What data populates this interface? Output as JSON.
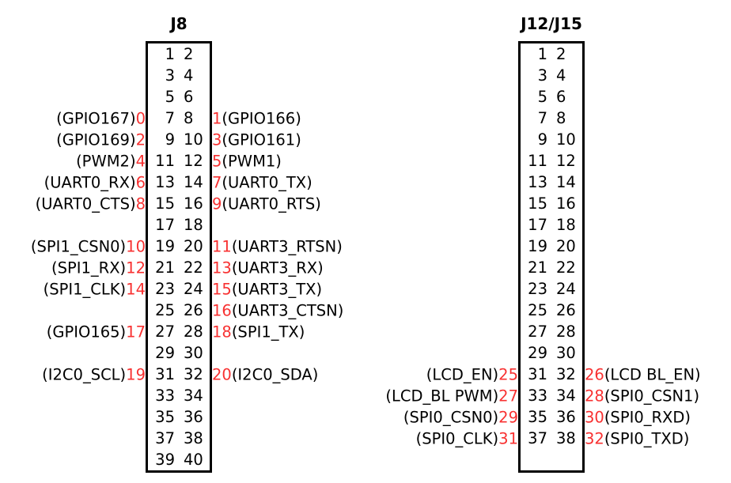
{
  "colors": {
    "background": "#ffffff",
    "text": "#000000",
    "red": "#f83131"
  },
  "connectors": [
    {
      "title": "J8",
      "rows": [
        {
          "left_label": "",
          "left_index": "",
          "left_pin": "1",
          "right_pin": "2",
          "right_index": "",
          "right_label": ""
        },
        {
          "left_label": "",
          "left_index": "",
          "left_pin": "3",
          "right_pin": "4",
          "right_index": "",
          "right_label": ""
        },
        {
          "left_label": "",
          "left_index": "",
          "left_pin": "5",
          "right_pin": "6",
          "right_index": "",
          "right_label": ""
        },
        {
          "left_label": "(GPIO167)",
          "left_index": "0",
          "left_pin": "7",
          "right_pin": "8",
          "right_index": "1",
          "right_label": "(GPIO166)"
        },
        {
          "left_label": "(GPIO169)",
          "left_index": "2",
          "left_pin": "9",
          "right_pin": "10",
          "right_index": "3",
          "right_label": "(GPIO161)"
        },
        {
          "left_label": "(PWM2)",
          "left_index": "4",
          "left_pin": "11",
          "right_pin": "12",
          "right_index": "5",
          "right_label": "(PWM1)"
        },
        {
          "left_label": "(UART0_RX)",
          "left_index": "6",
          "left_pin": "13",
          "right_pin": "14",
          "right_index": "7",
          "right_label": "(UART0_TX)"
        },
        {
          "left_label": "(UART0_CTS)",
          "left_index": "8",
          "left_pin": "15",
          "right_pin": "16",
          "right_index": "9",
          "right_label": "(UART0_RTS)"
        },
        {
          "left_label": "",
          "left_index": "",
          "left_pin": "17",
          "right_pin": "18",
          "right_index": "",
          "right_label": ""
        },
        {
          "left_label": "(SPI1_CSN0)",
          "left_index": "10",
          "left_pin": "19",
          "right_pin": "20",
          "right_index": "11",
          "right_label": "(UART3_RTSN)"
        },
        {
          "left_label": "(SPI1_RX)",
          "left_index": "12",
          "left_pin": "21",
          "right_pin": "22",
          "right_index": "13",
          "right_label": "(UART3_RX)"
        },
        {
          "left_label": "(SPI1_CLK)",
          "left_index": "14",
          "left_pin": "23",
          "right_pin": "24",
          "right_index": "15",
          "right_label": "(UART3_TX)"
        },
        {
          "left_label": "",
          "left_index": "",
          "left_pin": "25",
          "right_pin": "26",
          "right_index": "16",
          "right_label": "(UART3_CTSN)"
        },
        {
          "left_label": "(GPIO165)",
          "left_index": "17",
          "left_pin": "27",
          "right_pin": "28",
          "right_index": "18",
          "right_label": "(SPI1_TX)"
        },
        {
          "left_label": "",
          "left_index": "",
          "left_pin": "29",
          "right_pin": "30",
          "right_index": "",
          "right_label": ""
        },
        {
          "left_label": "(I2C0_SCL)",
          "left_index": "19",
          "left_pin": "31",
          "right_pin": "32",
          "right_index": "20",
          "right_label": "(I2C0_SDA)"
        },
        {
          "left_label": "",
          "left_index": "",
          "left_pin": "33",
          "right_pin": "34",
          "right_index": "",
          "right_label": ""
        },
        {
          "left_label": "",
          "left_index": "",
          "left_pin": "35",
          "right_pin": "36",
          "right_index": "",
          "right_label": ""
        },
        {
          "left_label": "",
          "left_index": "",
          "left_pin": "37",
          "right_pin": "38",
          "right_index": "",
          "right_label": ""
        },
        {
          "left_label": "",
          "left_index": "",
          "left_pin": "39",
          "right_pin": "40",
          "right_index": "",
          "right_label": ""
        }
      ]
    },
    {
      "title": "J12/J15",
      "rows": [
        {
          "left_label": "",
          "left_index": "",
          "left_pin": "1",
          "right_pin": "2",
          "right_index": "",
          "right_label": ""
        },
        {
          "left_label": "",
          "left_index": "",
          "left_pin": "3",
          "right_pin": "4",
          "right_index": "",
          "right_label": ""
        },
        {
          "left_label": "",
          "left_index": "",
          "left_pin": "5",
          "right_pin": "6",
          "right_index": "",
          "right_label": ""
        },
        {
          "left_label": "",
          "left_index": "",
          "left_pin": "7",
          "right_pin": "8",
          "right_index": "",
          "right_label": ""
        },
        {
          "left_label": "",
          "left_index": "",
          "left_pin": "9",
          "right_pin": "10",
          "right_index": "",
          "right_label": ""
        },
        {
          "left_label": "",
          "left_index": "",
          "left_pin": "11",
          "right_pin": "12",
          "right_index": "",
          "right_label": ""
        },
        {
          "left_label": "",
          "left_index": "",
          "left_pin": "13",
          "right_pin": "14",
          "right_index": "",
          "right_label": ""
        },
        {
          "left_label": "",
          "left_index": "",
          "left_pin": "15",
          "right_pin": "16",
          "right_index": "",
          "right_label": ""
        },
        {
          "left_label": "",
          "left_index": "",
          "left_pin": "17",
          "right_pin": "18",
          "right_index": "",
          "right_label": ""
        },
        {
          "left_label": "",
          "left_index": "",
          "left_pin": "19",
          "right_pin": "20",
          "right_index": "",
          "right_label": ""
        },
        {
          "left_label": "",
          "left_index": "",
          "left_pin": "21",
          "right_pin": "22",
          "right_index": "",
          "right_label": ""
        },
        {
          "left_label": "",
          "left_index": "",
          "left_pin": "23",
          "right_pin": "24",
          "right_index": "",
          "right_label": ""
        },
        {
          "left_label": "",
          "left_index": "",
          "left_pin": "25",
          "right_pin": "26",
          "right_index": "",
          "right_label": ""
        },
        {
          "left_label": "",
          "left_index": "",
          "left_pin": "27",
          "right_pin": "28",
          "right_index": "",
          "right_label": ""
        },
        {
          "left_label": "",
          "left_index": "",
          "left_pin": "29",
          "right_pin": "30",
          "right_index": "",
          "right_label": ""
        },
        {
          "left_label": "(LCD_EN)",
          "left_index": "25",
          "left_pin": "31",
          "right_pin": "32",
          "right_index": "26",
          "right_label": "(LCD BL_EN)"
        },
        {
          "left_label": "(LCD_BL PWM)",
          "left_index": "27",
          "left_pin": "33",
          "right_pin": "34",
          "right_index": "28",
          "right_label": "(SPI0_CSN1)"
        },
        {
          "left_label": "(SPI0_CSN0)",
          "left_index": "29",
          "left_pin": "35",
          "right_pin": "36",
          "right_index": "30",
          "right_label": "(SPI0_RXD)"
        },
        {
          "left_label": "(SPI0_CLK)",
          "left_index": "31",
          "left_pin": "37",
          "right_pin": "38",
          "right_index": "32",
          "right_label": "(SPI0_TXD)"
        },
        {
          "left_label": "",
          "left_index": "",
          "left_pin": "",
          "right_pin": "",
          "right_index": "",
          "right_label": ""
        }
      ]
    }
  ]
}
